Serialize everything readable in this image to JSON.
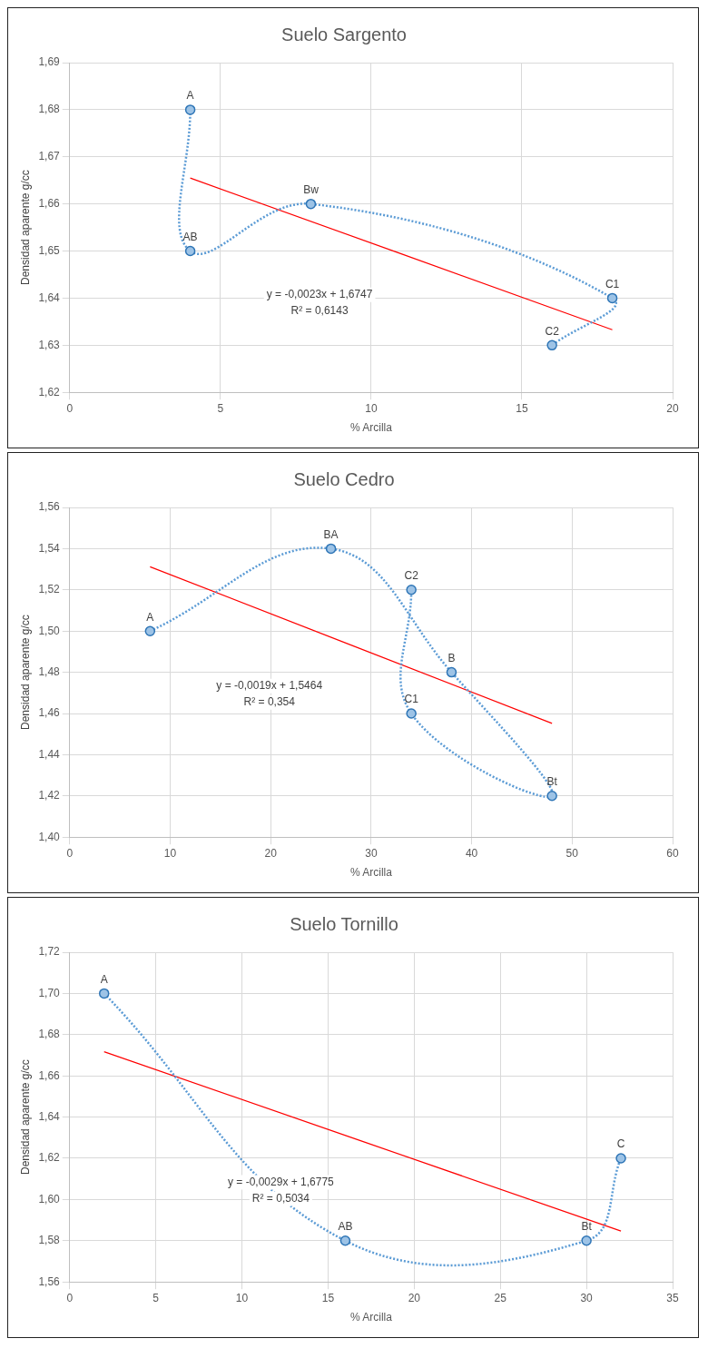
{
  "chart_data": [
    {
      "type": "line",
      "title": "Suelo Sargento",
      "xlabel": "% Arcilla",
      "ylabel": "Densidad aparente g/cc",
      "xlim": [
        0,
        20
      ],
      "xticks": [
        0,
        5,
        10,
        15,
        20
      ],
      "ylim": [
        1.62,
        1.69
      ],
      "yticks": [
        {
          "value": 1.62,
          "label": "1,62"
        },
        {
          "value": 1.63,
          "label": "1,63"
        },
        {
          "value": 1.64,
          "label": "1,64"
        },
        {
          "value": 1.65,
          "label": "1,65"
        },
        {
          "value": 1.66,
          "label": "1,66"
        },
        {
          "value": 1.67,
          "label": "1,67"
        },
        {
          "value": 1.68,
          "label": "1,68"
        },
        {
          "value": 1.69,
          "label": "1,69"
        }
      ],
      "grid": true,
      "legend": false,
      "series": [
        {
          "color": "#5b9bd5",
          "marker": "circle",
          "line_style": "dotted",
          "x": [
            4,
            4,
            8,
            18,
            16
          ],
          "values": [
            1.68,
            1.65,
            1.66,
            1.64,
            1.63
          ],
          "value_labels": [
            "A",
            "AB",
            "Bw",
            "C1",
            "C2"
          ]
        },
        {
          "color": "#ff0000",
          "marker": "none",
          "line_style": "solid",
          "x": [
            4,
            18
          ],
          "values": [
            1.6655,
            1.6333
          ]
        }
      ],
      "annotations": [
        "y = -0,0023x + 1,6747",
        "R² = 0,6143"
      ]
    },
    {
      "type": "line",
      "title": "Suelo Cedro",
      "xlabel": "% Arcilla",
      "ylabel": "Densidad aparente g/cc",
      "xlim": [
        0,
        60
      ],
      "xticks": [
        0,
        10,
        20,
        30,
        40,
        50,
        60
      ],
      "ylim": [
        1.4,
        1.56
      ],
      "yticks": [
        {
          "value": 1.4,
          "label": "1,40"
        },
        {
          "value": 1.42,
          "label": "1,42"
        },
        {
          "value": 1.44,
          "label": "1,44"
        },
        {
          "value": 1.46,
          "label": "1,46"
        },
        {
          "value": 1.48,
          "label": "1,48"
        },
        {
          "value": 1.5,
          "label": "1,50"
        },
        {
          "value": 1.52,
          "label": "1,52"
        },
        {
          "value": 1.54,
          "label": "1,54"
        },
        {
          "value": 1.56,
          "label": "1,56"
        }
      ],
      "grid": true,
      "legend": false,
      "series": [
        {
          "color": "#5b9bd5",
          "marker": "circle",
          "line_style": "dotted",
          "x": [
            8,
            26,
            38,
            48,
            34,
            34
          ],
          "values": [
            1.5,
            1.54,
            1.48,
            1.42,
            1.46,
            1.52
          ],
          "value_labels": [
            "A",
            "BA",
            "B",
            "Bt",
            "C1",
            "C2"
          ]
        },
        {
          "color": "#ff0000",
          "marker": "none",
          "line_style": "solid",
          "x": [
            8,
            48
          ],
          "values": [
            1.5312,
            1.4552
          ]
        }
      ],
      "annotations": [
        "y = -0,0019x + 1,5464",
        "R² = 0,354"
      ]
    },
    {
      "type": "line",
      "title": "Suelo Tornillo",
      "xlabel": "% Arcilla",
      "ylabel": "Densidad aparente g/cc",
      "xlim": [
        0,
        35
      ],
      "xticks": [
        0,
        5,
        10,
        15,
        20,
        25,
        30,
        35
      ],
      "ylim": [
        1.56,
        1.72
      ],
      "yticks": [
        {
          "value": 1.56,
          "label": "1,56"
        },
        {
          "value": 1.58,
          "label": "1,58"
        },
        {
          "value": 1.6,
          "label": "1,60"
        },
        {
          "value": 1.62,
          "label": "1,62"
        },
        {
          "value": 1.64,
          "label": "1,64"
        },
        {
          "value": 1.66,
          "label": "1,66"
        },
        {
          "value": 1.68,
          "label": "1,68"
        },
        {
          "value": 1.7,
          "label": "1,70"
        },
        {
          "value": 1.72,
          "label": "1,72"
        }
      ],
      "grid": true,
      "legend": false,
      "series": [
        {
          "color": "#5b9bd5",
          "marker": "circle",
          "line_style": "dotted",
          "x": [
            2,
            16,
            30,
            32
          ],
          "values": [
            1.7,
            1.58,
            1.58,
            1.62
          ],
          "value_labels": [
            "A",
            "AB",
            "Bt",
            "C"
          ]
        },
        {
          "color": "#ff0000",
          "marker": "none",
          "line_style": "solid",
          "x": [
            2,
            32
          ],
          "values": [
            1.6717,
            1.5847
          ]
        }
      ],
      "annotations": [
        "y = -0,0029x + 1,6775",
        "R² = 0,5034"
      ]
    }
  ]
}
